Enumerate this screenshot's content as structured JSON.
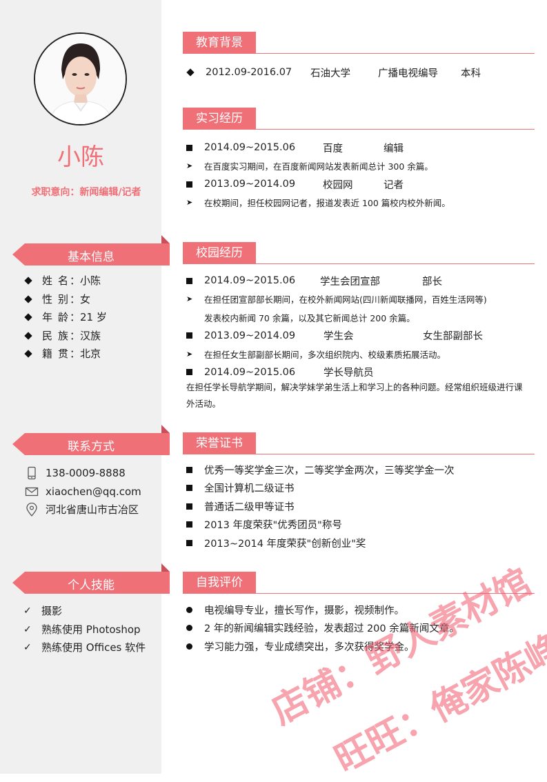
{
  "profile": {
    "name": "小陈",
    "intent": "求职意向：新闻编辑/记者"
  },
  "sidebar": {
    "basic": {
      "title": "基本信息",
      "items": [
        {
          "label": "姓名",
          "value": "：小陈"
        },
        {
          "label": "性别",
          "value": "：女"
        },
        {
          "label": "年龄",
          "value": "：21 岁"
        },
        {
          "label": "民族",
          "value": "：汉族"
        },
        {
          "label": "籍贯",
          "value": "：北京"
        }
      ]
    },
    "contact": {
      "title": "联系方式",
      "phone": "138-0009-8888",
      "email": "xiaochen@qq.com",
      "address": "河北省唐山市古冶区"
    },
    "skills": {
      "title": "个人技能",
      "items": [
        "摄影",
        "熟练使用 Photoshop",
        "熟练使用 Offices 软件"
      ]
    }
  },
  "education": {
    "title": "教育背景",
    "period": "2012.09-2016.07",
    "school": "石油大学",
    "major": "广播电视编导",
    "degree": "本科"
  },
  "internship": {
    "title": "实习经历",
    "entries": [
      {
        "period": "2014.09~2015.06",
        "org": "百度",
        "role": "编辑",
        "desc": "在百度实习期间，在百度新闻网站发表新闻总计 300 余篇。"
      },
      {
        "period": "2013.09~2014.09",
        "org": "校园网",
        "role": "记者",
        "desc": "在校期间，担任校园网记者，报道发表近 100 篇校内校外新闻。"
      }
    ]
  },
  "campus": {
    "title": "校园经历",
    "entries": [
      {
        "period": "2014.09~2015.06",
        "org": "学生会团宣部",
        "role": "部长",
        "desc1": "在担任团宣部部长期间，在校外新闻网站(四川新闻联播网，百姓生活网等)",
        "desc2": "发表校内新闻 70 余篇，以及其它新闻总计 200 余篇。"
      },
      {
        "period": "2013.09~2014.09",
        "org": "学生会",
        "role": "女生部副部长",
        "desc1": "在担任女生部副部长期间，多次组织院内、校级素质拓展活动。"
      },
      {
        "period": "2014.09~2015.06",
        "org": "学长导航员",
        "role": "",
        "desc1": "在担任学长导航学期间，解决学妹学弟生活上和学习上的各种问题。经常组织班级进行课外活动。"
      }
    ]
  },
  "honors": {
    "title": "荣誉证书",
    "items": [
      "优秀一等奖学金三次，二等奖学金两次，三等奖学金一次",
      "全国计算机二级证书",
      "普通话二级甲等证书",
      "2013 年度荣获\"优秀团员\"称号",
      "2013~2014 年度荣获\"创新创业\"奖"
    ]
  },
  "self_eval": {
    "title": "自我评价",
    "items": [
      "电视编导专业，擅长写作，摄影，视频制作。",
      "2 年的新闻编辑实践经验，发表超过 200 余篇新闻文章。",
      "学习能力强，专业成绩突出，多次获得奖学金。"
    ]
  },
  "watermark": {
    "line1": "店铺：野人素材馆",
    "line2": "旺旺：俺家陈峥"
  },
  "colors": {
    "accent": "#f07078",
    "sidebar_bg": "#f0f0f0"
  }
}
